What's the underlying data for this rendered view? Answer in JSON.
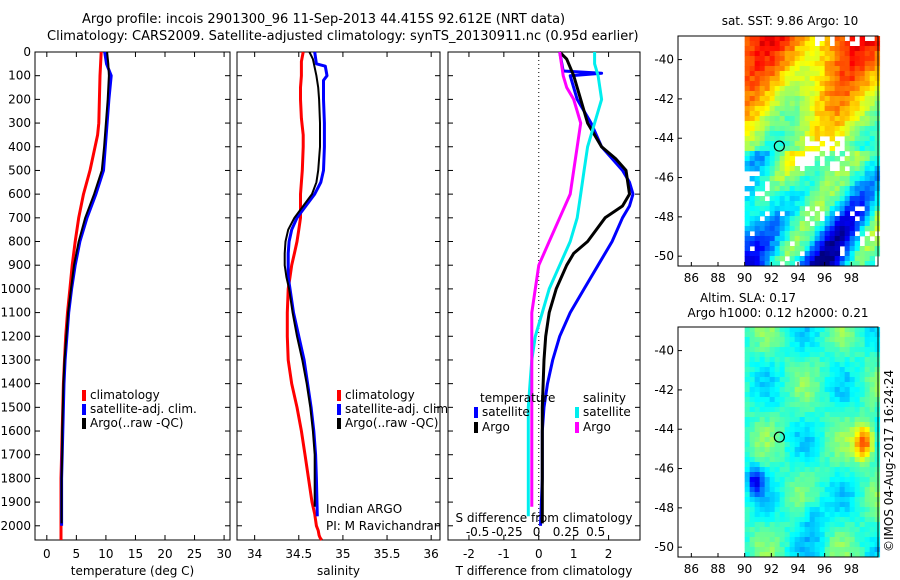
{
  "header": {
    "title_line1": "Argo profile: incois 2901300_96 11-Sep-2013 44.415S 92.612E (NRT data)",
    "title_line2": "Climatology: CARS2009. Satellite-adjusted climatology: synTS_20130911.nc (0.95d earlier)"
  },
  "side": {
    "sst_title": "sat. SST: 9.86 Argo: 10",
    "sla_title1": "Altim. SLA: 0.17",
    "sla_title2": "Argo h1000: 0.12 h2000: 0.21",
    "credit": "©IMOS 04-Aug-2017 16:24:24"
  },
  "colors": {
    "clim": "#ff0000",
    "sat": "#0000ff",
    "argo": "#000000",
    "sat_s": "#00eeee",
    "argo_s": "#ff00ff"
  },
  "chart_data": [
    {
      "type": "line",
      "id": "temperature",
      "xlabel": "temperature (deg C)",
      "ylabel": "",
      "xlim": [
        -2,
        31
      ],
      "ylim": [
        2060,
        0
      ],
      "xticks": [
        0,
        5,
        10,
        15,
        20,
        25,
        30
      ],
      "xticklabels": [
        "0",
        "5",
        "10",
        "15",
        "20",
        "25",
        "30"
      ],
      "yticks": [
        0,
        100,
        200,
        300,
        400,
        500,
        600,
        700,
        800,
        900,
        1000,
        1100,
        1200,
        1300,
        1400,
        1500,
        1600,
        1700,
        1800,
        1900,
        2000
      ],
      "yticklabels": [
        "0",
        "100",
        "200",
        "300",
        "400",
        "500",
        "600",
        "700",
        "800",
        "900",
        "1000",
        "1100",
        "1200",
        "1300",
        "1400",
        "1500",
        "1600",
        "1700",
        "1800",
        "1900",
        "2000"
      ],
      "legend": [
        "climatology",
        "satellite-adj. clim.",
        "Argo(..raw -QC)"
      ],
      "legend_position": "lower-center",
      "series": [
        {
          "name": "climatology",
          "color": "#ff0000",
          "width": 3,
          "x": [
            9.2,
            9.1,
            9.0,
            8.9,
            8.8,
            8.6,
            7.3,
            6.2,
            5.4,
            4.8,
            4.3,
            3.9,
            3.5,
            3.2,
            3.0,
            2.8,
            2.7,
            2.6,
            2.5,
            2.4,
            2.4,
            2.4,
            2.4,
            2.4
          ],
          "y": [
            0,
            50,
            100,
            200,
            300,
            350,
            500,
            600,
            700,
            800,
            900,
            1000,
            1100,
            1200,
            1300,
            1400,
            1500,
            1600,
            1700,
            1800,
            1900,
            2000,
            2030,
            2060
          ]
        },
        {
          "name": "satellite-adj. clim.",
          "color": "#0000ff",
          "width": 3,
          "x": [
            9.8,
            10.1,
            10.9,
            10.5,
            10.2,
            9.9,
            9.6,
            8.3,
            6.8,
            5.6,
            4.8,
            4.2,
            3.7,
            3.4,
            3.1,
            2.9,
            2.8,
            2.7,
            2.6,
            2.5,
            2.5,
            2.5
          ],
          "y": [
            0,
            50,
            100,
            200,
            300,
            400,
            500,
            600,
            700,
            800,
            900,
            1000,
            1100,
            1200,
            1300,
            1400,
            1500,
            1600,
            1700,
            1800,
            1900,
            2000
          ]
        },
        {
          "name": "Argo(..raw -QC)",
          "color": "#000000",
          "width": 2,
          "x": [
            10.2,
            10.4,
            10.5,
            10.3,
            10.0,
            9.7,
            9.3,
            8.0,
            6.5,
            5.4,
            4.6,
            4.1,
            3.6,
            3.3,
            3.0,
            2.8,
            2.7,
            2.6,
            2.6,
            2.5,
            2.5,
            2.5
          ],
          "y": [
            0,
            50,
            100,
            200,
            300,
            400,
            500,
            600,
            700,
            800,
            900,
            1000,
            1100,
            1200,
            1300,
            1400,
            1500,
            1600,
            1700,
            1800,
            1900,
            1990
          ]
        }
      ]
    },
    {
      "type": "line",
      "id": "salinity",
      "xlabel": "salinity",
      "ylabel": "",
      "xlim": [
        33.8,
        36.1
      ],
      "ylim": [
        2060,
        0
      ],
      "xticks": [
        34,
        34.5,
        35,
        35.5,
        36
      ],
      "xticklabels": [
        "34",
        "34.5",
        "35",
        "35.5",
        "36"
      ],
      "legend": [
        "climatology",
        "satellite-adj. clim.",
        "Argo(..raw -QC)"
      ],
      "legend_position": "lower-right",
      "annotation": [
        "Indian ARGO",
        "PI: M Ravichandran"
      ],
      "series": [
        {
          "name": "climatology",
          "color": "#ff0000",
          "width": 3,
          "x": [
            34.55,
            34.53,
            34.53,
            34.52,
            34.52,
            34.53,
            34.55,
            34.55,
            34.54,
            34.53,
            34.52,
            34.52,
            34.52,
            34.5,
            34.48,
            34.45,
            34.42,
            34.4,
            34.38,
            34.37,
            34.37,
            34.38,
            34.42,
            34.48,
            34.53,
            34.57,
            34.61,
            34.65,
            34.68,
            34.7,
            34.72,
            34.73,
            34.74,
            34.75,
            34.76
          ],
          "y": [
            0,
            40,
            100,
            150,
            200,
            280,
            350,
            400,
            500,
            550,
            600,
            650,
            700,
            750,
            800,
            850,
            900,
            950,
            1000,
            1100,
            1200,
            1300,
            1400,
            1500,
            1600,
            1700,
            1800,
            1900,
            1950,
            2000,
            2020,
            2040,
            2050,
            2055,
            2060
          ]
        },
        {
          "name": "satellite-adj. clim.",
          "color": "#0000ff",
          "width": 3,
          "x": [
            34.68,
            34.7,
            34.8,
            34.82,
            34.78,
            34.78,
            34.79,
            34.79,
            34.78,
            34.75,
            34.68,
            34.58,
            34.48,
            34.42,
            34.39,
            34.38,
            34.38,
            34.38,
            34.4,
            34.44,
            34.5,
            34.56,
            34.6,
            34.64,
            34.67,
            34.69,
            34.7,
            34.71
          ],
          "y": [
            0,
            50,
            60,
            100,
            120,
            200,
            300,
            400,
            500,
            550,
            600,
            650,
            700,
            750,
            800,
            850,
            900,
            950,
            1000,
            1100,
            1200,
            1300,
            1400,
            1500,
            1600,
            1700,
            1800,
            1960
          ]
        },
        {
          "name": "Argo(..raw -QC)",
          "color": "#000000",
          "width": 2,
          "x": [
            34.62,
            34.66,
            34.7,
            34.72,
            34.73,
            34.74,
            34.74,
            34.73,
            34.72,
            34.7,
            34.65,
            34.55,
            34.45,
            34.38,
            34.35,
            34.34,
            34.34,
            34.36,
            34.39,
            34.43,
            34.48,
            34.54,
            34.59,
            34.63,
            34.66,
            34.68,
            34.68
          ],
          "y": [
            0,
            30,
            100,
            150,
            200,
            300,
            400,
            450,
            500,
            550,
            600,
            650,
            700,
            750,
            800,
            850,
            900,
            950,
            1000,
            1100,
            1200,
            1300,
            1400,
            1500,
            1600,
            1700,
            1920
          ]
        }
      ]
    },
    {
      "type": "line",
      "id": "difference",
      "xlabel": "T difference from climatology",
      "xlabel2": "S difference from climatology",
      "xlim": [
        -2.6,
        2.9
      ],
      "ylim": [
        2060,
        0
      ],
      "xticks": [
        -2,
        -1,
        0,
        1,
        2
      ],
      "xticklabels": [
        "-2",
        "-1",
        "0",
        "1",
        "2"
      ],
      "xticks2": [
        -0.5,
        -0.25,
        0,
        0.25,
        0.5
      ],
      "xticklabels2": [
        "-0.5",
        "-0.25",
        "0",
        "0.25",
        "0.5"
      ],
      "legend_titles": [
        "temperature",
        "salinity"
      ],
      "legend": [
        "satellite",
        "Argo",
        "satellite",
        "Argo"
      ],
      "legend_position": "lower-center",
      "series": [
        {
          "name": "T satellite",
          "color": "#0000ff",
          "width": 3,
          "x": [
            0.6,
            0.7,
            1.8,
            0.9,
            1.1,
            1.5,
            1.8,
            2.1,
            2.4,
            2.6,
            2.7,
            2.6,
            2.4,
            2.1,
            1.7,
            1.3,
            0.9,
            0.6,
            0.4,
            0.25,
            0.15,
            0.1,
            0.1,
            0.05
          ],
          "y": [
            0,
            80,
            90,
            100,
            200,
            300,
            400,
            450,
            500,
            550,
            600,
            650,
            700,
            800,
            900,
            1000,
            1100,
            1200,
            1300,
            1400,
            1500,
            1600,
            1800,
            2000
          ]
        },
        {
          "name": "T Argo",
          "color": "#000000",
          "width": 3,
          "x": [
            0.6,
            0.8,
            1.0,
            1.2,
            1.4,
            1.8,
            2.2,
            2.5,
            2.6,
            2.4,
            1.9,
            1.4,
            1.0,
            0.8,
            0.5,
            0.3,
            0.2,
            0.15,
            0.1,
            0.1
          ],
          "y": [
            0,
            30,
            100,
            200,
            300,
            400,
            450,
            500,
            600,
            650,
            700,
            800,
            850,
            900,
            1000,
            1100,
            1200,
            1300,
            1500,
            1990
          ]
        },
        {
          "name": "S satellite",
          "color": "#00eeee",
          "width": 3,
          "x": [
            1.6,
            1.6,
            1.7,
            1.8,
            1.6,
            1.4,
            1.3,
            1.2,
            1.1,
            0.9,
            0.6,
            0.3,
            0.1,
            -0.1,
            -0.2,
            -0.25,
            -0.3,
            -0.3,
            -0.3
          ],
          "y": [
            0,
            50,
            100,
            200,
            300,
            400,
            500,
            600,
            700,
            800,
            900,
            1000,
            1100,
            1200,
            1300,
            1400,
            1500,
            1800,
            1960
          ]
        },
        {
          "name": "S Argo",
          "color": "#ff00ff",
          "width": 3,
          "x": [
            0.6,
            0.7,
            0.8,
            1.0,
            1.1,
            1.2,
            1.1,
            1.0,
            0.9,
            0.6,
            0.3,
            0.0,
            -0.1,
            -0.2,
            -0.2,
            -0.2
          ],
          "y": [
            0,
            100,
            150,
            200,
            250,
            300,
            400,
            500,
            600,
            700,
            800,
            900,
            1000,
            1100,
            1300,
            1920
          ]
        }
      ]
    },
    {
      "type": "heatmap",
      "id": "sst_map",
      "title": "sat. SST: 9.86 Argo: 10",
      "xlim": [
        85,
        100
      ],
      "ylim": [
        -50.5,
        -38.8
      ],
      "xticks": [
        86,
        88,
        90,
        92,
        94,
        96,
        98
      ],
      "xticklabels": [
        "86",
        "88",
        "90",
        "92",
        "94",
        "96",
        "98"
      ],
      "yticks": [
        -40,
        -42,
        -44,
        -46,
        -48,
        -50
      ],
      "yticklabels": [
        "-40",
        "-42",
        "-44",
        "-46",
        "-48",
        "-50"
      ],
      "data_lon_range": [
        90,
        100
      ],
      "argo_position": [
        92.6,
        -44.4
      ]
    },
    {
      "type": "heatmap",
      "id": "sla_map",
      "title": "Altim. SLA: 0.17",
      "xlim": [
        85,
        100
      ],
      "ylim": [
        -50.5,
        -38.8
      ],
      "xticks": [
        86,
        88,
        90,
        92,
        94,
        96,
        98
      ],
      "xticklabels": [
        "86",
        "88",
        "90",
        "92",
        "94",
        "96",
        "98"
      ],
      "yticks": [
        -40,
        -42,
        -44,
        -46,
        -48,
        -50
      ],
      "yticklabels": [
        "-40",
        "-42",
        "-44",
        "-46",
        "-48",
        "-50"
      ],
      "data_lon_range": [
        90,
        100
      ],
      "argo_position": [
        92.6,
        -44.4
      ]
    }
  ]
}
